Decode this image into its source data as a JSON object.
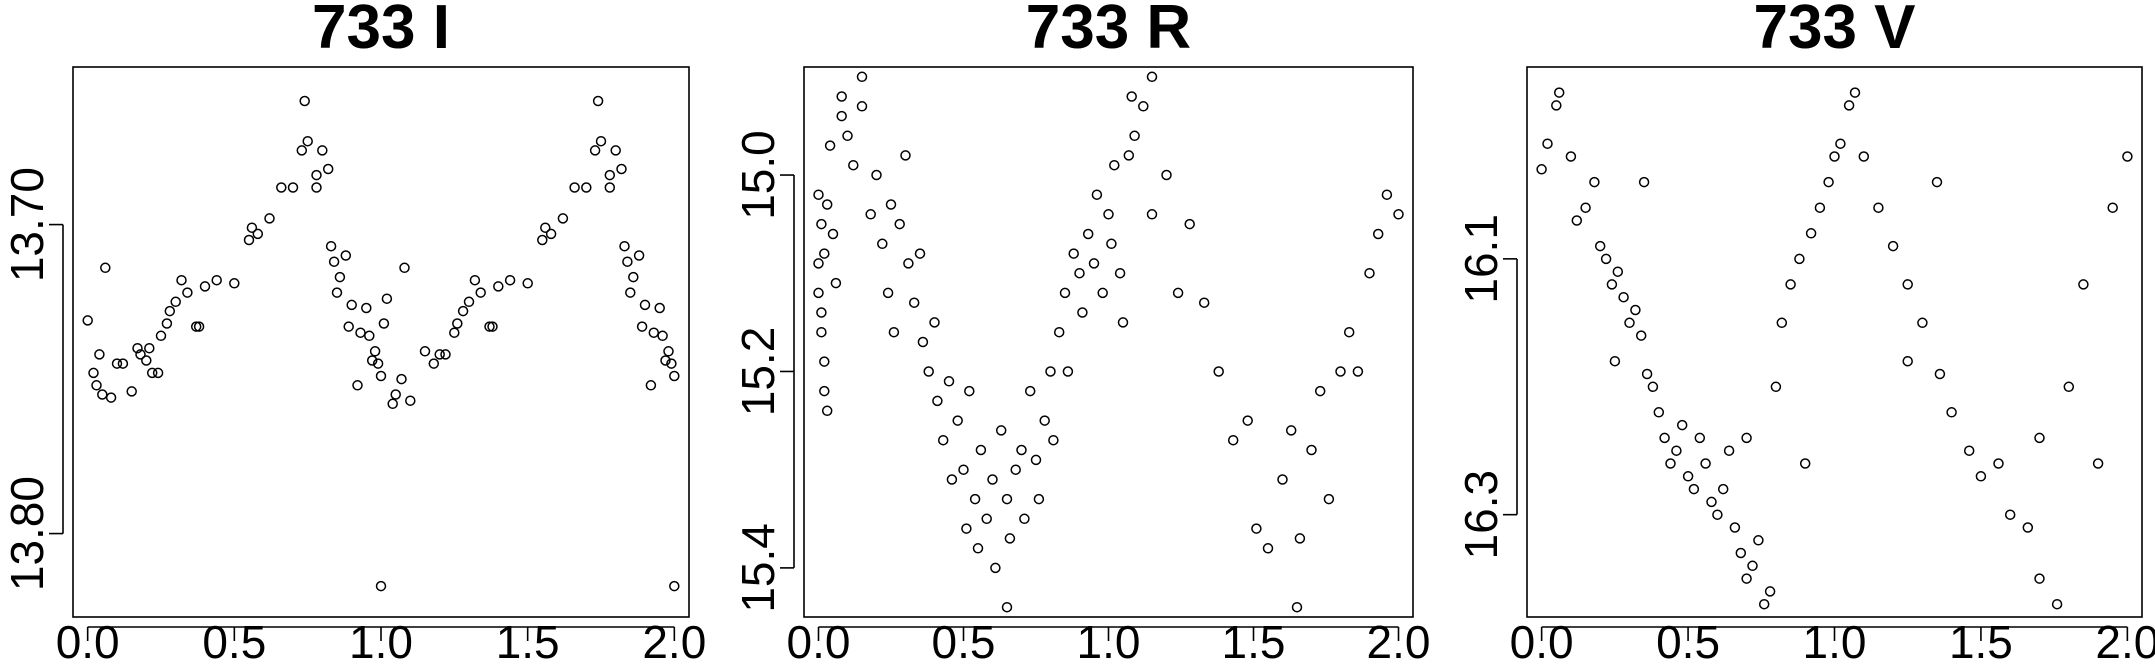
{
  "chart_data": [
    {
      "type": "scatter",
      "title": "733 I",
      "xlabel": "",
      "ylabel": "",
      "xlim": [
        -0.05,
        2.05
      ],
      "ylim": [
        13.827,
        13.649
      ],
      "y_reversed": true,
      "grid": false,
      "x_ticks": [
        0.0,
        0.5,
        1.0,
        1.5,
        2.0
      ],
      "x_tick_labels": [
        "0.0",
        "0.5",
        "1.0",
        "1.5",
        "2.0"
      ],
      "y_ticks": [
        13.7,
        13.8
      ],
      "y_tick_labels": [
        "13.70",
        "13.80"
      ],
      "points": [
        [
          0.0,
          13.731
        ],
        [
          0.03,
          13.752
        ],
        [
          0.04,
          13.742
        ],
        [
          0.05,
          13.755
        ],
        [
          0.02,
          13.748
        ],
        [
          0.06,
          13.714
        ],
        [
          0.08,
          13.756
        ],
        [
          0.1,
          13.745
        ],
        [
          0.12,
          13.745
        ],
        [
          0.15,
          13.754
        ],
        [
          0.17,
          13.74
        ],
        [
          0.18,
          13.742
        ],
        [
          0.2,
          13.744
        ],
        [
          0.21,
          13.74
        ],
        [
          0.22,
          13.748
        ],
        [
          0.24,
          13.748
        ],
        [
          0.25,
          13.736
        ],
        [
          0.27,
          13.732
        ],
        [
          0.28,
          13.728
        ],
        [
          0.3,
          13.725
        ],
        [
          0.32,
          13.718
        ],
        [
          0.34,
          13.722
        ],
        [
          0.37,
          13.733
        ],
        [
          0.38,
          13.733
        ],
        [
          0.4,
          13.72
        ],
        [
          0.44,
          13.718
        ],
        [
          0.5,
          13.719
        ],
        [
          0.55,
          13.705
        ],
        [
          0.56,
          13.701
        ],
        [
          0.58,
          13.703
        ],
        [
          0.62,
          13.698
        ],
        [
          0.66,
          13.688
        ],
        [
          0.7,
          13.688
        ],
        [
          0.73,
          13.676
        ],
        [
          0.74,
          13.66
        ],
        [
          0.75,
          13.673
        ],
        [
          0.78,
          13.688
        ],
        [
          0.78,
          13.684
        ],
        [
          0.8,
          13.676
        ],
        [
          0.82,
          13.682
        ],
        [
          0.83,
          13.707
        ],
        [
          0.84,
          13.712
        ],
        [
          0.85,
          13.722
        ],
        [
          0.86,
          13.717
        ],
        [
          0.88,
          13.71
        ],
        [
          0.89,
          13.733
        ],
        [
          0.9,
          13.726
        ],
        [
          0.92,
          13.752
        ],
        [
          0.93,
          13.735
        ],
        [
          0.95,
          13.727
        ],
        [
          0.96,
          13.736
        ],
        [
          0.97,
          13.744
        ],
        [
          0.98,
          13.741
        ],
        [
          0.99,
          13.745
        ],
        [
          1.0,
          13.749
        ],
        [
          1.01,
          13.732
        ],
        [
          1.02,
          13.724
        ],
        [
          1.04,
          13.758
        ],
        [
          1.05,
          13.755
        ],
        [
          1.07,
          13.75
        ],
        [
          1.08,
          13.714
        ],
        [
          1.1,
          13.757
        ],
        [
          1.15,
          13.741
        ],
        [
          1.18,
          13.745
        ],
        [
          1.2,
          13.742
        ],
        [
          1.22,
          13.742
        ],
        [
          1.25,
          13.735
        ],
        [
          1.26,
          13.732
        ],
        [
          1.28,
          13.728
        ],
        [
          1.3,
          13.725
        ],
        [
          1.32,
          13.718
        ],
        [
          1.34,
          13.722
        ],
        [
          1.37,
          13.733
        ],
        [
          1.38,
          13.733
        ],
        [
          1.4,
          13.72
        ],
        [
          1.44,
          13.718
        ],
        [
          1.5,
          13.719
        ],
        [
          1.55,
          13.705
        ],
        [
          1.56,
          13.701
        ],
        [
          1.58,
          13.703
        ],
        [
          1.62,
          13.698
        ],
        [
          1.66,
          13.688
        ],
        [
          1.7,
          13.688
        ],
        [
          1.73,
          13.676
        ],
        [
          1.74,
          13.66
        ],
        [
          1.75,
          13.673
        ],
        [
          1.78,
          13.688
        ],
        [
          1.78,
          13.684
        ],
        [
          1.8,
          13.676
        ],
        [
          1.82,
          13.682
        ],
        [
          1.83,
          13.707
        ],
        [
          1.84,
          13.712
        ],
        [
          1.85,
          13.722
        ],
        [
          1.86,
          13.717
        ],
        [
          1.88,
          13.71
        ],
        [
          1.89,
          13.733
        ],
        [
          1.9,
          13.726
        ],
        [
          1.92,
          13.752
        ],
        [
          1.93,
          13.735
        ],
        [
          1.95,
          13.727
        ],
        [
          1.96,
          13.736
        ],
        [
          1.97,
          13.744
        ],
        [
          1.98,
          13.741
        ],
        [
          1.99,
          13.745
        ],
        [
          2.0,
          13.749
        ],
        [
          2.0,
          13.817
        ],
        [
          1.0,
          13.817
        ]
      ]
    },
    {
      "type": "scatter",
      "title": "733 R",
      "xlabel": "",
      "ylabel": "",
      "xlim": [
        -0.05,
        2.05
      ],
      "ylim": [
        15.45,
        14.89
      ],
      "y_reversed": true,
      "grid": false,
      "x_ticks": [
        0.0,
        0.5,
        1.0,
        1.5,
        2.0
      ],
      "x_tick_labels": [
        "0.0",
        "0.5",
        "1.0",
        "1.5",
        "2.0"
      ],
      "y_ticks": [
        15.0,
        15.2,
        15.4
      ],
      "y_tick_labels": [
        "15.0",
        "15.2",
        "15.4"
      ],
      "points": [
        [
          0.0,
          15.02
        ],
        [
          0.01,
          15.05
        ],
        [
          0.02,
          15.08
        ],
        [
          0.0,
          15.12
        ],
        [
          0.01,
          15.16
        ],
        [
          0.02,
          15.22
        ],
        [
          0.03,
          15.03
        ],
        [
          0.0,
          15.09
        ],
        [
          0.01,
          15.14
        ],
        [
          0.02,
          15.19
        ],
        [
          0.03,
          15.24
        ],
        [
          0.04,
          14.97
        ],
        [
          0.05,
          15.06
        ],
        [
          0.06,
          15.11
        ],
        [
          0.08,
          14.94
        ],
        [
          0.1,
          14.96
        ],
        [
          0.12,
          14.99
        ],
        [
          0.15,
          14.93
        ],
        [
          0.18,
          15.04
        ],
        [
          0.2,
          15.0
        ],
        [
          0.22,
          15.07
        ],
        [
          0.24,
          15.12
        ],
        [
          0.25,
          15.03
        ],
        [
          0.26,
          15.16
        ],
        [
          0.28,
          15.05
        ],
        [
          0.3,
          14.98
        ],
        [
          0.31,
          15.09
        ],
        [
          0.33,
          15.13
        ],
        [
          0.35,
          15.08
        ],
        [
          0.36,
          15.17
        ],
        [
          0.38,
          15.2
        ],
        [
          0.4,
          15.15
        ],
        [
          0.41,
          15.23
        ],
        [
          0.43,
          15.27
        ],
        [
          0.45,
          15.21
        ],
        [
          0.46,
          15.31
        ],
        [
          0.48,
          15.25
        ],
        [
          0.5,
          15.3
        ],
        [
          0.51,
          15.36
        ],
        [
          0.52,
          15.22
        ],
        [
          0.54,
          15.33
        ],
        [
          0.55,
          15.38
        ],
        [
          0.56,
          15.28
        ],
        [
          0.58,
          15.35
        ],
        [
          0.6,
          15.31
        ],
        [
          0.61,
          15.4
        ],
        [
          0.63,
          15.26
        ],
        [
          0.65,
          15.33
        ],
        [
          0.66,
          15.37
        ],
        [
          0.68,
          15.3
        ],
        [
          0.7,
          15.28
        ],
        [
          0.71,
          15.35
        ],
        [
          0.73,
          15.22
        ],
        [
          0.75,
          15.29
        ],
        [
          0.76,
          15.33
        ],
        [
          0.78,
          15.25
        ],
        [
          0.8,
          15.2
        ],
        [
          0.81,
          15.27
        ],
        [
          0.83,
          15.16
        ],
        [
          0.85,
          15.12
        ],
        [
          0.86,
          15.2
        ],
        [
          0.88,
          15.08
        ],
        [
          0.9,
          15.1
        ],
        [
          0.91,
          15.14
        ],
        [
          0.93,
          15.06
        ],
        [
          0.95,
          15.09
        ],
        [
          0.96,
          15.02
        ],
        [
          0.98,
          15.12
        ],
        [
          1.0,
          15.04
        ],
        [
          1.01,
          15.07
        ],
        [
          1.02,
          14.99
        ],
        [
          1.04,
          15.1
        ],
        [
          1.05,
          15.15
        ],
        [
          1.07,
          14.98
        ],
        [
          1.09,
          14.96
        ],
        [
          1.12,
          14.93
        ],
        [
          1.15,
          15.04
        ],
        [
          1.2,
          15.0
        ],
        [
          1.24,
          15.12
        ],
        [
          1.28,
          15.05
        ],
        [
          1.33,
          15.13
        ],
        [
          1.38,
          15.2
        ],
        [
          1.43,
          15.27
        ],
        [
          1.48,
          15.25
        ],
        [
          1.51,
          15.36
        ],
        [
          1.55,
          15.38
        ],
        [
          1.6,
          15.31
        ],
        [
          1.63,
          15.26
        ],
        [
          1.66,
          15.37
        ],
        [
          1.7,
          15.28
        ],
        [
          1.73,
          15.22
        ],
        [
          1.76,
          15.33
        ],
        [
          1.8,
          15.2
        ],
        [
          1.83,
          15.16
        ],
        [
          1.86,
          15.2
        ],
        [
          1.9,
          15.1
        ],
        [
          1.93,
          15.06
        ],
        [
          1.96,
          15.02
        ],
        [
          2.0,
          15.04
        ],
        [
          0.65,
          15.44
        ],
        [
          1.65,
          15.44
        ],
        [
          0.08,
          14.92
        ],
        [
          1.08,
          14.92
        ],
        [
          0.15,
          14.9
        ],
        [
          1.15,
          14.9
        ]
      ]
    },
    {
      "type": "scatter",
      "title": "733 V",
      "xlabel": "",
      "ylabel": "",
      "xlim": [
        -0.05,
        2.05
      ],
      "ylim": [
        16.38,
        15.95
      ],
      "y_reversed": true,
      "grid": false,
      "x_ticks": [
        0.0,
        0.5,
        1.0,
        1.5,
        2.0
      ],
      "x_tick_labels": [
        "0.0",
        "0.5",
        "1.0",
        "1.5",
        "2.0"
      ],
      "y_ticks": [
        16.1,
        16.3
      ],
      "y_tick_labels": [
        "16.1",
        "16.3"
      ],
      "points": [
        [
          0.0,
          16.03
        ],
        [
          0.02,
          16.01
        ],
        [
          0.05,
          15.98
        ],
        [
          0.06,
          15.97
        ],
        [
          0.1,
          16.02
        ],
        [
          0.12,
          16.07
        ],
        [
          0.15,
          16.06
        ],
        [
          0.18,
          16.04
        ],
        [
          0.2,
          16.09
        ],
        [
          0.22,
          16.1
        ],
        [
          0.24,
          16.12
        ],
        [
          0.26,
          16.11
        ],
        [
          0.28,
          16.13
        ],
        [
          0.3,
          16.15
        ],
        [
          0.32,
          16.14
        ],
        [
          0.34,
          16.16
        ],
        [
          0.36,
          16.19
        ],
        [
          0.38,
          16.2
        ],
        [
          0.4,
          16.22
        ],
        [
          0.42,
          16.24
        ],
        [
          0.44,
          16.26
        ],
        [
          0.46,
          16.25
        ],
        [
          0.48,
          16.23
        ],
        [
          0.5,
          16.27
        ],
        [
          0.52,
          16.28
        ],
        [
          0.54,
          16.24
        ],
        [
          0.56,
          16.26
        ],
        [
          0.58,
          16.29
        ],
        [
          0.6,
          16.3
        ],
        [
          0.62,
          16.28
        ],
        [
          0.64,
          16.25
        ],
        [
          0.66,
          16.31
        ],
        [
          0.68,
          16.33
        ],
        [
          0.7,
          16.35
        ],
        [
          0.72,
          16.34
        ],
        [
          0.74,
          16.32
        ],
        [
          0.76,
          16.37
        ],
        [
          0.78,
          16.36
        ],
        [
          0.8,
          16.2
        ],
        [
          0.82,
          16.15
        ],
        [
          0.85,
          16.12
        ],
        [
          0.88,
          16.1
        ],
        [
          0.9,
          16.26
        ],
        [
          0.92,
          16.08
        ],
        [
          0.95,
          16.06
        ],
        [
          0.98,
          16.04
        ],
        [
          1.0,
          16.02
        ],
        [
          1.02,
          16.01
        ],
        [
          1.05,
          15.98
        ],
        [
          1.07,
          15.97
        ],
        [
          1.1,
          16.02
        ],
        [
          1.15,
          16.06
        ],
        [
          1.2,
          16.09
        ],
        [
          1.25,
          16.12
        ],
        [
          1.3,
          16.15
        ],
        [
          1.36,
          16.19
        ],
        [
          1.4,
          16.22
        ],
        [
          1.46,
          16.25
        ],
        [
          1.5,
          16.27
        ],
        [
          1.56,
          16.26
        ],
        [
          1.6,
          16.3
        ],
        [
          1.66,
          16.31
        ],
        [
          1.7,
          16.35
        ],
        [
          1.76,
          16.37
        ],
        [
          1.8,
          16.2
        ],
        [
          1.85,
          16.12
        ],
        [
          1.9,
          16.26
        ],
        [
          1.95,
          16.06
        ],
        [
          2.0,
          16.02
        ],
        [
          0.35,
          16.04
        ],
        [
          1.35,
          16.04
        ],
        [
          0.25,
          16.18
        ],
        [
          1.25,
          16.18
        ],
        [
          0.7,
          16.24
        ],
        [
          1.7,
          16.24
        ]
      ]
    }
  ]
}
